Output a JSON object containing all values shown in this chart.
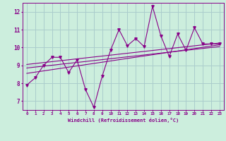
{
  "xlabel": "Windchill (Refroidissement éolien,°C)",
  "background_color": "#cceedd",
  "grid_color": "#aacccc",
  "line_color": "#880088",
  "xlim": [
    -0.5,
    23.5
  ],
  "ylim": [
    6.5,
    12.5
  ],
  "xticks": [
    0,
    1,
    2,
    3,
    4,
    5,
    6,
    7,
    8,
    9,
    10,
    11,
    12,
    13,
    14,
    15,
    16,
    17,
    18,
    19,
    20,
    21,
    22,
    23
  ],
  "yticks": [
    7,
    8,
    9,
    10,
    11,
    12
  ],
  "curve1_x": [
    0,
    1,
    2,
    3,
    4,
    5,
    6,
    7,
    8,
    9,
    10,
    11,
    12,
    13,
    14,
    15,
    16,
    17,
    18,
    19,
    20,
    21,
    22,
    23
  ],
  "curve1_y": [
    7.9,
    8.3,
    9.0,
    9.45,
    9.45,
    8.6,
    9.3,
    7.65,
    6.65,
    8.4,
    9.85,
    11.0,
    10.1,
    10.5,
    10.05,
    12.3,
    10.65,
    9.5,
    10.75,
    9.85,
    11.1,
    10.2,
    10.2,
    10.2
  ],
  "line1_x": [
    0,
    23
  ],
  "line1_y": [
    8.55,
    10.15
  ],
  "line2_x": [
    0,
    23
  ],
  "line2_y": [
    8.85,
    10.05
  ],
  "line3_x": [
    0,
    23
  ],
  "line3_y": [
    9.05,
    10.25
  ]
}
